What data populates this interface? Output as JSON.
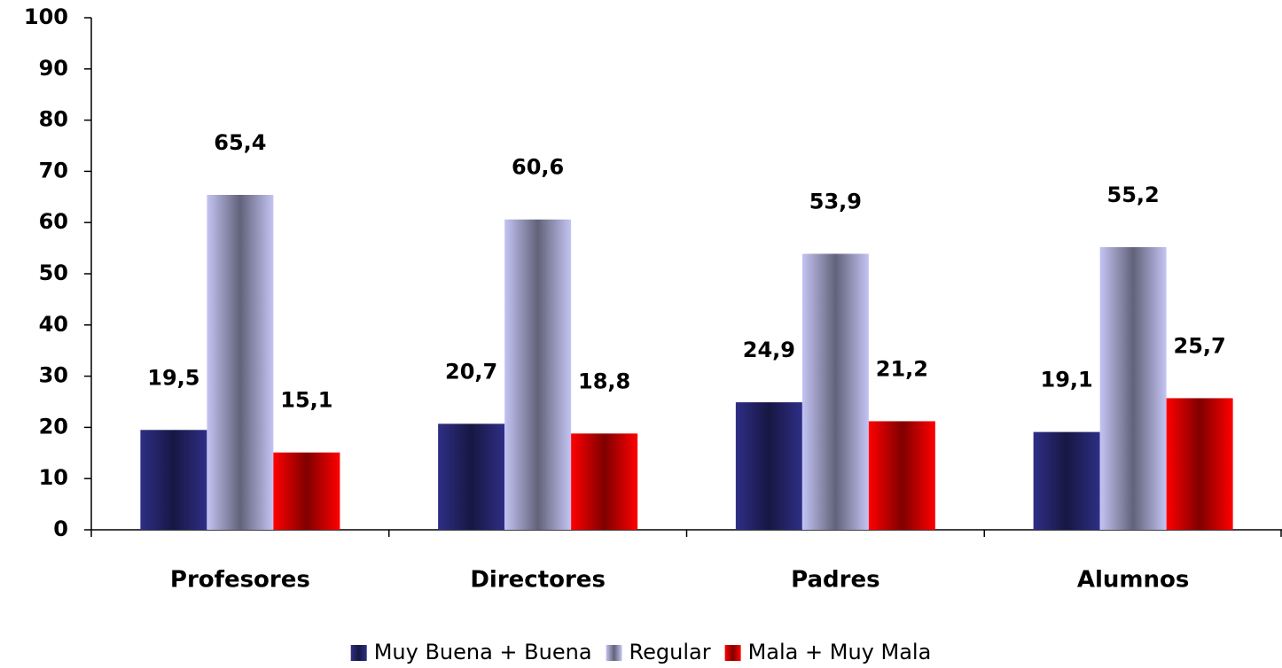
{
  "chart_data": {
    "type": "bar",
    "categories": [
      "Profesores",
      "Directores",
      "Padres",
      "Alumnos"
    ],
    "series": [
      {
        "name": "Muy Buena + Buena",
        "color": "#2e2e86",
        "values": [
          19.5,
          20.7,
          24.9,
          19.1
        ],
        "value_labels": [
          "19,5",
          "20,7",
          "24,9",
          "19,1"
        ]
      },
      {
        "name": "Regular",
        "color": "#c4c4f4",
        "values": [
          65.4,
          60.6,
          53.9,
          55.2
        ],
        "value_labels": [
          "65,4",
          "60,6",
          "53,9",
          "55,2"
        ]
      },
      {
        "name": "Mala + Muy Mala",
        "color": "#ff0000",
        "values": [
          15.1,
          18.8,
          21.2,
          25.7
        ],
        "value_labels": [
          "15,1",
          "18,8",
          "21,2",
          "25,7"
        ]
      }
    ],
    "ylim": [
      0,
      100
    ],
    "yticks": [
      0,
      10,
      20,
      30,
      40,
      50,
      60,
      70,
      80,
      90,
      100
    ],
    "legend": "bottom"
  }
}
